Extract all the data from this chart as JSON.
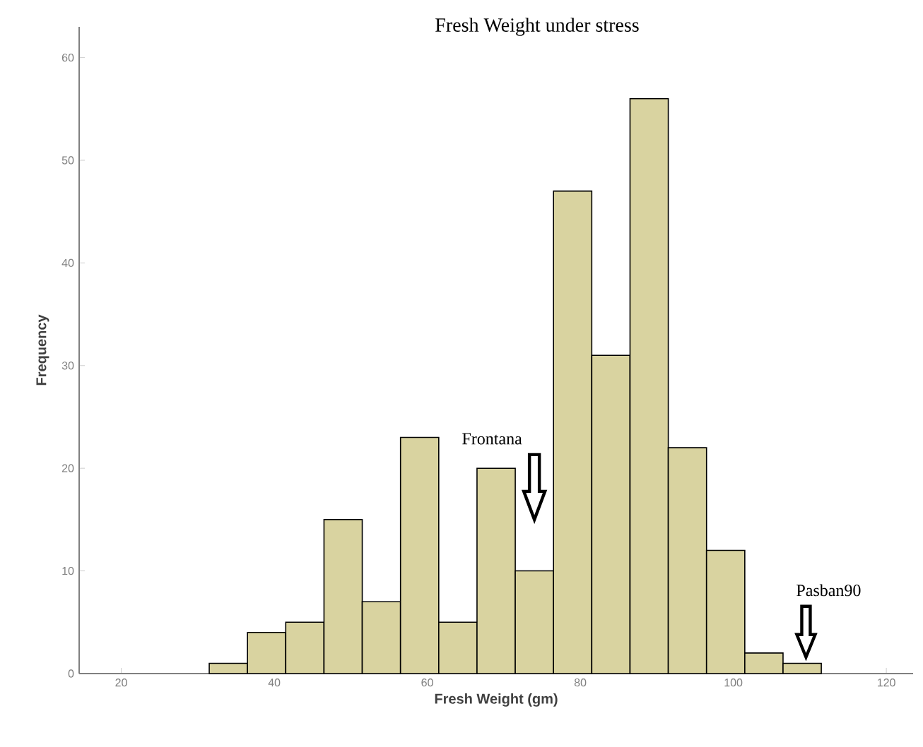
{
  "chart_data": {
    "type": "histogram",
    "title": "Fresh Weight under stress",
    "xlabel": "Fresh Weight (gm)",
    "ylabel": "Frequency",
    "bins": [
      31.5,
      36.5,
      41.5,
      46.5,
      51.5,
      56.5,
      61.5,
      66.5,
      71.5,
      76.5,
      81.5,
      86.5,
      91.5,
      96.5,
      101.5,
      106.5,
      111.5
    ],
    "values": [
      1,
      4,
      5,
      15,
      7,
      23,
      5,
      20,
      10,
      47,
      31,
      56,
      22,
      12,
      2,
      1
    ],
    "color": "#d9d3a0",
    "xlim": [
      14.5,
      123.5
    ],
    "ylim": [
      0,
      63
    ],
    "xticks": [
      20,
      40,
      60,
      80,
      100,
      120
    ],
    "yticks": [
      0,
      10,
      20,
      30,
      40,
      50,
      60
    ],
    "grid": false,
    "annotations": [
      "Frontana",
      "Pasban90"
    ]
  }
}
